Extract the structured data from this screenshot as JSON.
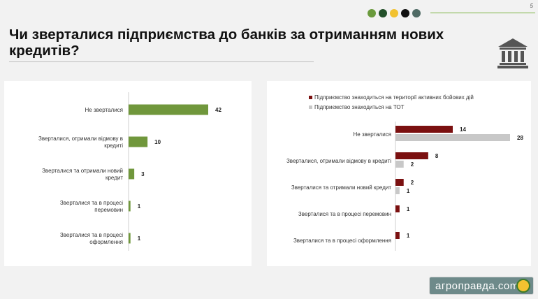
{
  "page_number": "5",
  "title": "Чи зверталися підприємства до банків за отриманням нових кредитів?",
  "dot_colors": [
    "#6a9a3c",
    "#23502a",
    "#f2c230",
    "#111111",
    "#4f6a64"
  ],
  "accent_color": "#7bb241",
  "icon": "bank-icon",
  "watermark": "агроправда.com",
  "chart_data": [
    {
      "type": "bar",
      "orientation": "horizontal",
      "categories": [
        "Не зверталися",
        "Зверталися, отримали відмову в кредиті",
        "Зверталися та отримали новий кредит",
        "Зверталися та в процесі перемовин",
        "Зверталися та в процесі оформлення"
      ],
      "values": [
        42,
        10,
        3,
        1,
        1
      ],
      "color": "#70973c",
      "data_labels": true,
      "grid": false
    },
    {
      "type": "bar",
      "orientation": "horizontal",
      "categories": [
        "Не зверталися",
        "Зверталися, отримали відмову в кредиті",
        "Зверталися та отримали новий кредит",
        "Зверталися та в процесі перемовин",
        "Зверталися та в процесі оформлення"
      ],
      "series": [
        {
          "name": "Підприємство знаходиться  на території активних бойових дій",
          "values": [
            14,
            8,
            2,
            1,
            1
          ],
          "color": "#7b1010"
        },
        {
          "name": "Підприємство знаходиться  на ТОТ",
          "values": [
            28,
            2,
            1,
            null,
            null
          ],
          "color": "#c8c8c8"
        }
      ],
      "legend_position": "top-left",
      "data_labels": true,
      "grid": false
    }
  ]
}
